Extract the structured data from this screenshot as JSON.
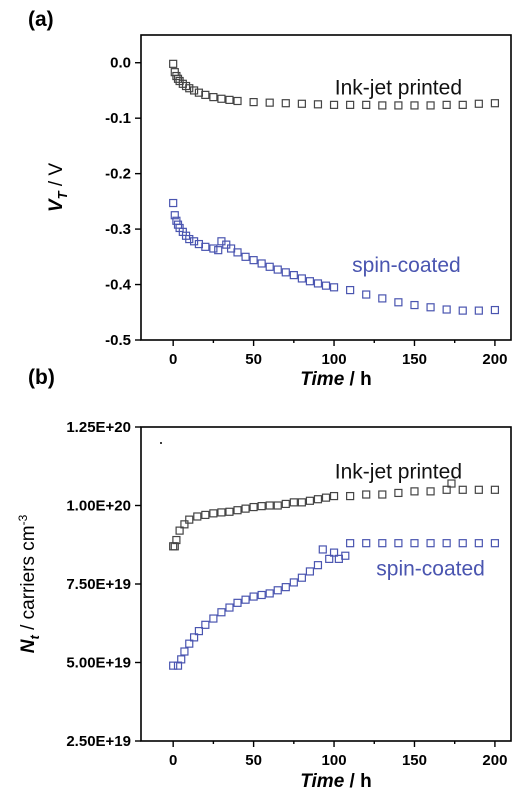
{
  "chart_data": [
    {
      "panel_label": "(a)",
      "type": "scatter",
      "xlabel": {
        "main": "Time",
        "unit": " / h"
      },
      "ylabel": {
        "main": "V",
        "sub": "T",
        "unit": " / V"
      },
      "xlim": [
        -20,
        210
      ],
      "ylim": [
        -0.5,
        0.05
      ],
      "xticks": [
        0,
        50,
        100,
        150,
        200
      ],
      "xtick_labels": [
        "0",
        "50",
        "100",
        "150",
        "200"
      ],
      "yticks": [
        0.0,
        -0.1,
        -0.2,
        -0.3,
        -0.4,
        -0.5
      ],
      "ytick_labels": [
        "0.0",
        "-0.1",
        "-0.2",
        "-0.3",
        "-0.4",
        "-0.5"
      ],
      "grid": false,
      "series": [
        {
          "name": "Ink-jet printed",
          "color": "#444444",
          "marker": "open-square",
          "points": [
            [
              0,
              -0.002
            ],
            [
              1,
              -0.017
            ],
            [
              2,
              -0.024
            ],
            [
              3,
              -0.029
            ],
            [
              4,
              -0.033
            ],
            [
              6,
              -0.038
            ],
            [
              8,
              -0.042
            ],
            [
              10,
              -0.046
            ],
            [
              13,
              -0.05
            ],
            [
              16,
              -0.054
            ],
            [
              20,
              -0.058
            ],
            [
              25,
              -0.062
            ],
            [
              30,
              -0.065
            ],
            [
              35,
              -0.067
            ],
            [
              40,
              -0.069
            ],
            [
              50,
              -0.071
            ],
            [
              60,
              -0.072
            ],
            [
              70,
              -0.073
            ],
            [
              80,
              -0.074
            ],
            [
              90,
              -0.075
            ],
            [
              100,
              -0.076
            ],
            [
              110,
              -0.076
            ],
            [
              120,
              -0.076
            ],
            [
              130,
              -0.077
            ],
            [
              140,
              -0.077
            ],
            [
              150,
              -0.077
            ],
            [
              160,
              -0.077
            ],
            [
              170,
              -0.076
            ],
            [
              180,
              -0.076
            ],
            [
              190,
              -0.074
            ],
            [
              200,
              -0.073
            ]
          ]
        },
        {
          "name": "spin-coated",
          "color": "#4a55b0",
          "marker": "open-square",
          "points": [
            [
              0,
              -0.253
            ],
            [
              1,
              -0.275
            ],
            [
              2,
              -0.285
            ],
            [
              3,
              -0.292
            ],
            [
              4,
              -0.298
            ],
            [
              6,
              -0.305
            ],
            [
              8,
              -0.312
            ],
            [
              10,
              -0.318
            ],
            [
              13,
              -0.322
            ],
            [
              16,
              -0.327
            ],
            [
              20,
              -0.332
            ],
            [
              25,
              -0.335
            ],
            [
              28,
              -0.338
            ],
            [
              30,
              -0.322
            ],
            [
              33,
              -0.328
            ],
            [
              36,
              -0.335
            ],
            [
              40,
              -0.342
            ],
            [
              45,
              -0.35
            ],
            [
              50,
              -0.356
            ],
            [
              55,
              -0.362
            ],
            [
              60,
              -0.368
            ],
            [
              65,
              -0.373
            ],
            [
              70,
              -0.378
            ],
            [
              75,
              -0.383
            ],
            [
              80,
              -0.389
            ],
            [
              85,
              -0.394
            ],
            [
              90,
              -0.398
            ],
            [
              95,
              -0.402
            ],
            [
              100,
              -0.405
            ],
            [
              110,
              -0.41
            ],
            [
              120,
              -0.418
            ],
            [
              130,
              -0.425
            ],
            [
              140,
              -0.432
            ],
            [
              150,
              -0.437
            ],
            [
              160,
              -0.441
            ],
            [
              170,
              -0.445
            ],
            [
              180,
              -0.447
            ],
            [
              190,
              -0.447
            ],
            [
              200,
              -0.446
            ]
          ]
        }
      ],
      "annotations": [
        {
          "text": "Ink-jet printed",
          "color": "#111111",
          "x": 140,
          "y": -0.045
        },
        {
          "text": "spin-coated",
          "color": "#4a55b0",
          "x": 145,
          "y": -0.365
        }
      ]
    },
    {
      "panel_label": "(b)",
      "type": "scatter",
      "xlabel": {
        "main": "Time",
        "unit": " / h"
      },
      "ylabel": {
        "main": "N",
        "sub": "t",
        "unit": " / carriers cm",
        "sup": "-3"
      },
      "xlim": [
        -20,
        210
      ],
      "ylim": [
        2.5e+19,
        1.25e+20
      ],
      "xticks": [
        0,
        50,
        100,
        150,
        200
      ],
      "xtick_labels": [
        "0",
        "50",
        "100",
        "150",
        "200"
      ],
      "yticks": [
        2.5e+19,
        5e+19,
        7.5e+19,
        1e+20,
        1.25e+20
      ],
      "ytick_labels": [
        "2.50E+19",
        "5.00E+19",
        "7.50E+19",
        "1.00E+20",
        "1.25E+20"
      ],
      "grid": false,
      "series": [
        {
          "name": "Ink-jet printed",
          "color": "#444444",
          "marker": "open-square",
          "points": [
            [
              0,
              8.7e+19
            ],
            [
              1,
              8.7e+19
            ],
            [
              2,
              8.9e+19
            ],
            [
              4,
              9.2e+19
            ],
            [
              7,
              9.4e+19
            ],
            [
              10,
              9.55e+19
            ],
            [
              15,
              9.65e+19
            ],
            [
              20,
              9.7e+19
            ],
            [
              25,
              9.75e+19
            ],
            [
              30,
              9.78e+19
            ],
            [
              35,
              9.8e+19
            ],
            [
              40,
              9.85e+19
            ],
            [
              45,
              9.9e+19
            ],
            [
              50,
              9.95e+19
            ],
            [
              55,
              9.98e+19
            ],
            [
              60,
              1e+20
            ],
            [
              65,
              1e+20
            ],
            [
              70,
              1.005e+20
            ],
            [
              75,
              1.01e+20
            ],
            [
              80,
              1.01e+20
            ],
            [
              85,
              1.015e+20
            ],
            [
              90,
              1.02e+20
            ],
            [
              95,
              1.025e+20
            ],
            [
              100,
              1.03e+20
            ],
            [
              110,
              1.03e+20
            ],
            [
              120,
              1.035e+20
            ],
            [
              130,
              1.035e+20
            ],
            [
              140,
              1.04e+20
            ],
            [
              150,
              1.045e+20
            ],
            [
              160,
              1.045e+20
            ],
            [
              170,
              1.05e+20
            ],
            [
              173,
              1.07e+20
            ],
            [
              180,
              1.05e+20
            ],
            [
              190,
              1.05e+20
            ],
            [
              200,
              1.05e+20
            ]
          ]
        },
        {
          "name": "spin-coated",
          "color": "#4a55b0",
          "marker": "open-square",
          "points": [
            [
              0,
              4.9e+19
            ],
            [
              3,
              4.9e+19
            ],
            [
              5,
              5.1e+19
            ],
            [
              7,
              5.35e+19
            ],
            [
              10,
              5.6e+19
            ],
            [
              13,
              5.8e+19
            ],
            [
              16,
              6e+19
            ],
            [
              20,
              6.2e+19
            ],
            [
              25,
              6.4e+19
            ],
            [
              30,
              6.6e+19
            ],
            [
              35,
              6.75e+19
            ],
            [
              40,
              6.9e+19
            ],
            [
              45,
              7e+19
            ],
            [
              50,
              7.1e+19
            ],
            [
              55,
              7.15e+19
            ],
            [
              60,
              7.2e+19
            ],
            [
              65,
              7.3e+19
            ],
            [
              70,
              7.4e+19
            ],
            [
              75,
              7.55e+19
            ],
            [
              80,
              7.7e+19
            ],
            [
              85,
              7.9e+19
            ],
            [
              90,
              8.1e+19
            ],
            [
              93,
              8.6e+19
            ],
            [
              97,
              8.3e+19
            ],
            [
              100,
              8.5e+19
            ],
            [
              103,
              8.3e+19
            ],
            [
              107,
              8.4e+19
            ],
            [
              110,
              8.8e+19
            ],
            [
              120,
              8.8e+19
            ],
            [
              130,
              8.8e+19
            ],
            [
              140,
              8.8e+19
            ],
            [
              150,
              8.8e+19
            ],
            [
              160,
              8.8e+19
            ],
            [
              170,
              8.8e+19
            ],
            [
              180,
              8.8e+19
            ],
            [
              190,
              8.8e+19
            ],
            [
              200,
              8.8e+19
            ]
          ]
        }
      ],
      "annotations": [
        {
          "text": "Ink-jet printed",
          "color": "#111111",
          "x": 140,
          "y": 1.108e+20
        },
        {
          "text": "spin-coated",
          "color": "#4a55b0",
          "x": 160,
          "y": 8e+19
        }
      ]
    }
  ]
}
